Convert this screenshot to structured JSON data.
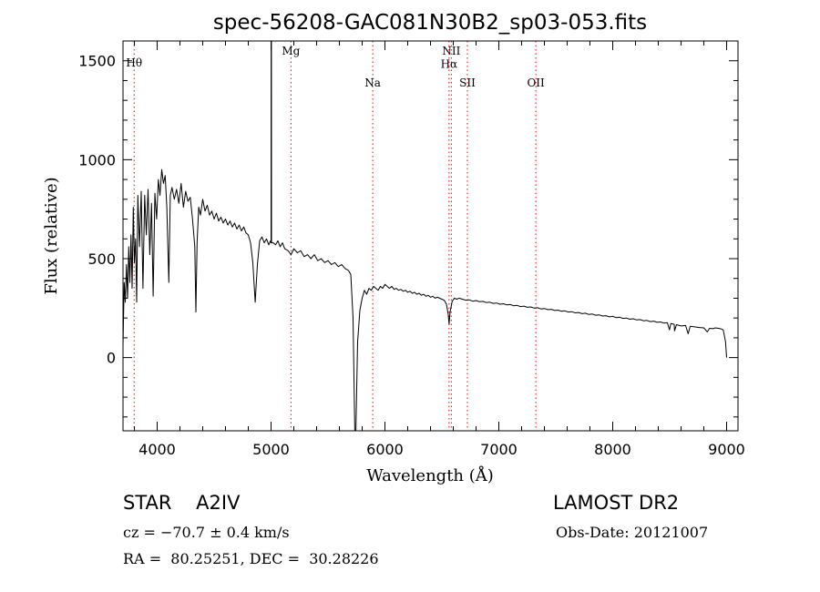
{
  "chart_data": {
    "type": "line",
    "title": "spec-56208-GAC081N30B2_sp03-053.fits",
    "xlabel": "Wavelength (Å)",
    "ylabel": "Flux (relative)",
    "xlim": [
      3700,
      9100
    ],
    "ylim": [
      -370,
      1600
    ],
    "xticks": [
      4000,
      5000,
      6000,
      7000,
      8000,
      9000
    ],
    "xtick_labels": [
      "4000",
      "5000",
      "6000",
      "7000",
      "8000",
      "9000"
    ],
    "yticks": [
      0,
      500,
      1000,
      1500
    ],
    "ytick_labels": [
      "0",
      "500",
      "1000",
      "1500"
    ],
    "grid": false,
    "line_color": "#000000",
    "marker_color": "#ff0000",
    "line_markers": [
      {
        "label": "Hθ",
        "x": 3798,
        "label_y": 1470
      },
      {
        "label": "Mg",
        "x": 5175,
        "label_y": 1530
      },
      {
        "label": "Na",
        "x": 5893,
        "label_y": 1370
      },
      {
        "label": "NII",
        "x": 6583,
        "label_y": 1530
      },
      {
        "label": "Hα",
        "x": 6563,
        "label_y": 1465
      },
      {
        "label": "SII",
        "x": 6724,
        "label_y": 1370
      },
      {
        "label": "OII",
        "x": 7325,
        "label_y": 1370
      }
    ],
    "spectrum": [
      [
        3700,
        60
      ],
      [
        3710,
        380
      ],
      [
        3720,
        280
      ],
      [
        3730,
        470
      ],
      [
        3740,
        300
      ],
      [
        3750,
        560
      ],
      [
        3760,
        380
      ],
      [
        3770,
        620
      ],
      [
        3780,
        350
      ],
      [
        3790,
        760
      ],
      [
        3800,
        480
      ],
      [
        3810,
        600
      ],
      [
        3820,
        280
      ],
      [
        3830,
        820
      ],
      [
        3845,
        560
      ],
      [
        3860,
        840
      ],
      [
        3875,
        350
      ],
      [
        3890,
        820
      ],
      [
        3905,
        620
      ],
      [
        3920,
        850
      ],
      [
        3935,
        520
      ],
      [
        3950,
        780
      ],
      [
        3965,
        310
      ],
      [
        3980,
        830
      ],
      [
        3995,
        700
      ],
      [
        4010,
        900
      ],
      [
        4025,
        820
      ],
      [
        4040,
        950
      ],
      [
        4055,
        880
      ],
      [
        4070,
        920
      ],
      [
        4085,
        760
      ],
      [
        4102,
        380
      ],
      [
        4115,
        820
      ],
      [
        4130,
        860
      ],
      [
        4150,
        800
      ],
      [
        4170,
        850
      ],
      [
        4190,
        780
      ],
      [
        4210,
        880
      ],
      [
        4230,
        760
      ],
      [
        4250,
        840
      ],
      [
        4270,
        790
      ],
      [
        4290,
        810
      ],
      [
        4310,
        700
      ],
      [
        4330,
        560
      ],
      [
        4340,
        230
      ],
      [
        4350,
        580
      ],
      [
        4365,
        760
      ],
      [
        4380,
        720
      ],
      [
        4400,
        800
      ],
      [
        4420,
        740
      ],
      [
        4440,
        770
      ],
      [
        4460,
        720
      ],
      [
        4480,
        740
      ],
      [
        4500,
        700
      ],
      [
        4520,
        730
      ],
      [
        4540,
        690
      ],
      [
        4560,
        710
      ],
      [
        4580,
        680
      ],
      [
        4600,
        700
      ],
      [
        4620,
        670
      ],
      [
        4640,
        690
      ],
      [
        4660,
        660
      ],
      [
        4680,
        680
      ],
      [
        4700,
        650
      ],
      [
        4720,
        670
      ],
      [
        4740,
        640
      ],
      [
        4760,
        660
      ],
      [
        4780,
        630
      ],
      [
        4800,
        620
      ],
      [
        4820,
        580
      ],
      [
        4840,
        480
      ],
      [
        4861,
        280
      ],
      [
        4880,
        470
      ],
      [
        4900,
        590
      ],
      [
        4920,
        610
      ],
      [
        4940,
        580
      ],
      [
        4960,
        600
      ],
      [
        4980,
        570
      ],
      [
        4995,
        590
      ],
      [
        5000,
        580
      ],
      [
        5001,
        1600
      ],
      [
        5003,
        1600
      ],
      [
        5004,
        580
      ],
      [
        5020,
        580
      ],
      [
        5040,
        570
      ],
      [
        5060,
        590
      ],
      [
        5080,
        560
      ],
      [
        5100,
        580
      ],
      [
        5120,
        550
      ],
      [
        5150,
        540
      ],
      [
        5175,
        520
      ],
      [
        5200,
        550
      ],
      [
        5230,
        530
      ],
      [
        5260,
        540
      ],
      [
        5290,
        510
      ],
      [
        5320,
        520
      ],
      [
        5350,
        500
      ],
      [
        5380,
        520
      ],
      [
        5410,
        490
      ],
      [
        5440,
        500
      ],
      [
        5470,
        480
      ],
      [
        5500,
        490
      ],
      [
        5530,
        470
      ],
      [
        5560,
        480
      ],
      [
        5590,
        460
      ],
      [
        5620,
        470
      ],
      [
        5650,
        450
      ],
      [
        5680,
        440
      ],
      [
        5700,
        420
      ],
      [
        5720,
        200
      ],
      [
        5735,
        -370
      ],
      [
        5745,
        -370
      ],
      [
        5760,
        80
      ],
      [
        5780,
        240
      ],
      [
        5800,
        300
      ],
      [
        5820,
        340
      ],
      [
        5840,
        320
      ],
      [
        5860,
        350
      ],
      [
        5880,
        340
      ],
      [
        5900,
        360
      ],
      [
        5920,
        350
      ],
      [
        5940,
        340
      ],
      [
        5960,
        360
      ],
      [
        5980,
        350
      ],
      [
        6000,
        370
      ],
      [
        6020,
        360
      ],
      [
        6040,
        350
      ],
      [
        6060,
        360
      ],
      [
        6080,
        345
      ],
      [
        6100,
        350
      ],
      [
        6120,
        340
      ],
      [
        6140,
        345
      ],
      [
        6160,
        335
      ],
      [
        6180,
        340
      ],
      [
        6200,
        330
      ],
      [
        6220,
        335
      ],
      [
        6240,
        325
      ],
      [
        6260,
        330
      ],
      [
        6280,
        320
      ],
      [
        6300,
        325
      ],
      [
        6320,
        315
      ],
      [
        6340,
        320
      ],
      [
        6360,
        310
      ],
      [
        6380,
        315
      ],
      [
        6400,
        305
      ],
      [
        6420,
        310
      ],
      [
        6440,
        300
      ],
      [
        6460,
        305
      ],
      [
        6480,
        300
      ],
      [
        6500,
        295
      ],
      [
        6520,
        290
      ],
      [
        6540,
        270
      ],
      [
        6555,
        220
      ],
      [
        6563,
        170
      ],
      [
        6572,
        230
      ],
      [
        6590,
        285
      ],
      [
        6610,
        300
      ],
      [
        6630,
        295
      ],
      [
        6650,
        300
      ],
      [
        6680,
        295
      ],
      [
        6710,
        290
      ],
      [
        6740,
        292
      ],
      [
        6770,
        285
      ],
      [
        6800,
        288
      ],
      [
        6830,
        282
      ],
      [
        6860,
        284
      ],
      [
        6890,
        278
      ],
      [
        6920,
        280
      ],
      [
        6950,
        274
      ],
      [
        6980,
        276
      ],
      [
        7010,
        270
      ],
      [
        7040,
        272
      ],
      [
        7070,
        266
      ],
      [
        7100,
        268
      ],
      [
        7130,
        262
      ],
      [
        7160,
        264
      ],
      [
        7190,
        258
      ],
      [
        7220,
        260
      ],
      [
        7250,
        254
      ],
      [
        7280,
        256
      ],
      [
        7310,
        250
      ],
      [
        7340,
        252
      ],
      [
        7370,
        246
      ],
      [
        7400,
        248
      ],
      [
        7430,
        242
      ],
      [
        7460,
        244
      ],
      [
        7490,
        238
      ],
      [
        7520,
        240
      ],
      [
        7550,
        234
      ],
      [
        7580,
        236
      ],
      [
        7610,
        230
      ],
      [
        7640,
        232
      ],
      [
        7670,
        226
      ],
      [
        7700,
        228
      ],
      [
        7730,
        222
      ],
      [
        7760,
        224
      ],
      [
        7790,
        218
      ],
      [
        7820,
        220
      ],
      [
        7850,
        214
      ],
      [
        7880,
        216
      ],
      [
        7910,
        210
      ],
      [
        7940,
        212
      ],
      [
        7970,
        206
      ],
      [
        8000,
        208
      ],
      [
        8030,
        202
      ],
      [
        8060,
        204
      ],
      [
        8090,
        198
      ],
      [
        8120,
        200
      ],
      [
        8150,
        194
      ],
      [
        8180,
        196
      ],
      [
        8210,
        190
      ],
      [
        8240,
        192
      ],
      [
        8270,
        186
      ],
      [
        8300,
        188
      ],
      [
        8330,
        182
      ],
      [
        8360,
        184
      ],
      [
        8390,
        178
      ],
      [
        8420,
        180
      ],
      [
        8450,
        174
      ],
      [
        8480,
        176
      ],
      [
        8498,
        140
      ],
      [
        8510,
        172
      ],
      [
        8540,
        168
      ],
      [
        8542,
        135
      ],
      [
        8560,
        166
      ],
      [
        8600,
        160
      ],
      [
        8640,
        162
      ],
      [
        8662,
        120
      ],
      [
        8680,
        158
      ],
      [
        8720,
        155
      ],
      [
        8760,
        152
      ],
      [
        8800,
        150
      ],
      [
        8830,
        130
      ],
      [
        8850,
        148
      ],
      [
        8880,
        146
      ],
      [
        8900,
        150
      ],
      [
        8930,
        148
      ],
      [
        8950,
        145
      ],
      [
        8970,
        140
      ],
      [
        8990,
        80
      ],
      [
        9000,
        0
      ]
    ]
  },
  "info": {
    "object_class": "STAR    A2IV",
    "survey": "LAMOST DR2",
    "cz": "cz = −70.7 ± 0.4 km/s",
    "obs_date": "Obs-Date: 20121007",
    "radec": "RA =  80.25251, DEC =  30.28226"
  }
}
